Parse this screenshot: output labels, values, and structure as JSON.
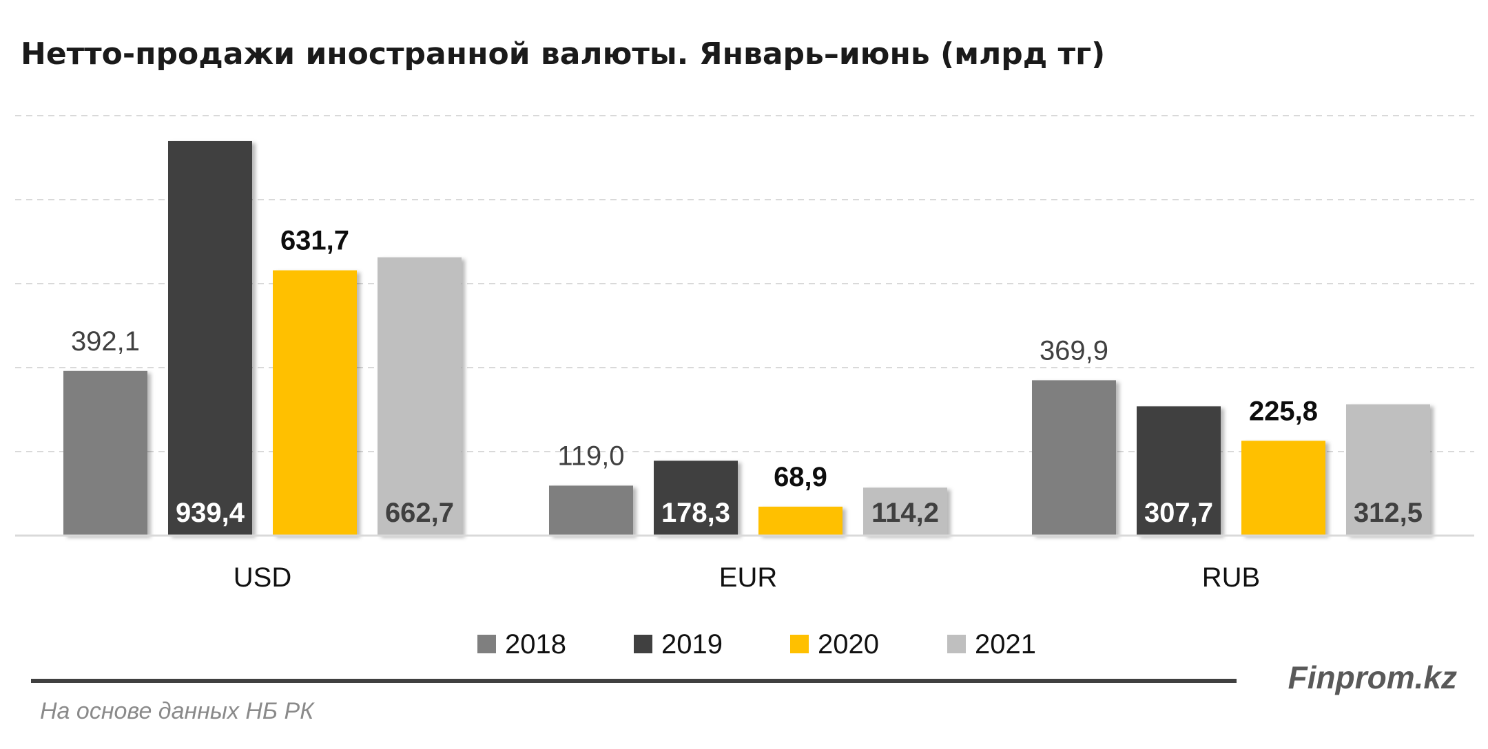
{
  "chart_data": {
    "type": "bar",
    "title": "Нетто-продажи иностранной валюты. Январь–июнь (млрд тг)",
    "categories": [
      "USD",
      "EUR",
      "RUB"
    ],
    "series": [
      {
        "name": "2018",
        "color": "#7f7f7f",
        "values": [
          392.1,
          119.0,
          369.9
        ],
        "labels": [
          "392,1",
          "119,0",
          "369,9"
        ],
        "label_position": "above"
      },
      {
        "name": "2019",
        "color": "#404040",
        "values": [
          939.4,
          178.3,
          307.7
        ],
        "labels": [
          "939,4",
          "178,3",
          "307,7"
        ],
        "label_position": "inside-bottom"
      },
      {
        "name": "2020",
        "color": "#ffc000",
        "values": [
          631.7,
          68.9,
          225.8
        ],
        "labels": [
          "631,7",
          "68,9",
          "225,8"
        ],
        "label_position": "above"
      },
      {
        "name": "2021",
        "color": "#bfbfbf",
        "values": [
          662.7,
          114.2,
          312.5
        ],
        "labels": [
          "662,7",
          "114,2",
          "312,5"
        ],
        "label_position": "inside-bottom"
      }
    ],
    "ylim": [
      0,
      1000
    ],
    "grid": true,
    "legend_position": "bottom"
  },
  "footer": {
    "brand": "Finprom.kz",
    "source": "На основе данных НБ РК"
  }
}
